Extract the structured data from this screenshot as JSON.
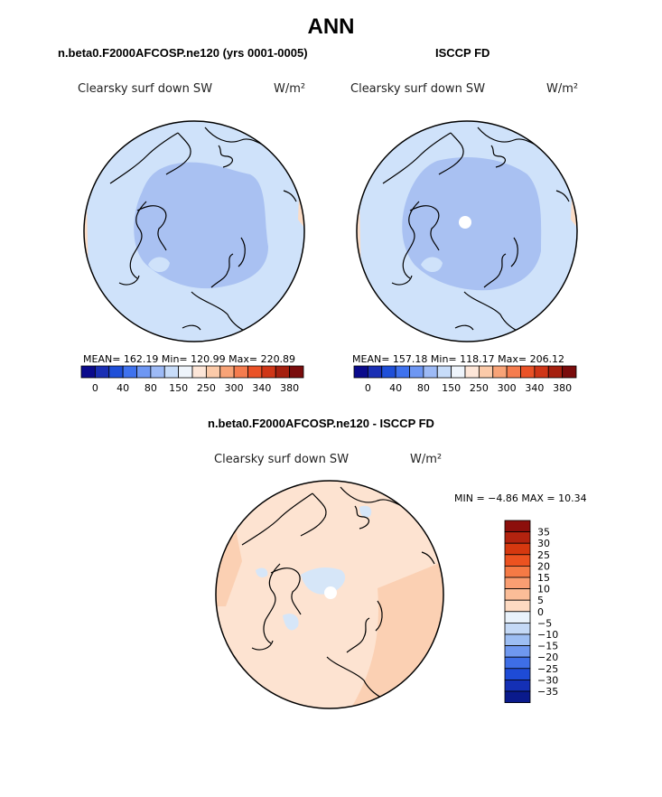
{
  "title": "ANN",
  "panels": [
    {
      "subtitle": "n.beta0.F2000AFCOSP.ne120 (yrs 0001-0005)",
      "variable": "Clearsky surf down SW",
      "units": "W/m²",
      "stats": "MEAN= 162.19   Min= 120.99   Max= 220.89"
    },
    {
      "subtitle": "ISCCP FD",
      "variable": "Clearsky surf down SW",
      "units": "W/m²",
      "stats": "MEAN= 157.18   Min= 118.17   Max= 206.12"
    }
  ],
  "shared_colorbar": {
    "colors": [
      "#0a0a8c",
      "#1a2fb4",
      "#1f4fd8",
      "#3f72ee",
      "#6e97f3",
      "#9dbaf6",
      "#c7dcf9",
      "#eef4fb",
      "#fde6d8",
      "#fbcaa9",
      "#f8a377",
      "#f57c4e",
      "#ea5227",
      "#cf3617",
      "#a5200f",
      "#7a0c0c"
    ],
    "ticks": [
      "0",
      "40",
      "80",
      "150",
      "250",
      "300",
      "340",
      "380"
    ]
  },
  "diff_panel": {
    "subtitle": "n.beta0.F2000AFCOSP.ne120 - ISCCP FD",
    "variable": "Clearsky surf down SW",
    "units": "W/m²",
    "stats": "MIN =   −4.86 MAX =   10.34"
  },
  "diff_colorbar": {
    "colors": [
      "#8c0f0c",
      "#b3230f",
      "#d6380f",
      "#ec5220",
      "#f57a45",
      "#fa9e72",
      "#fbbd98",
      "#fddac2",
      "#e9f2fb",
      "#c4d9f6",
      "#9dbef3",
      "#6f98ef",
      "#3e6ee6",
      "#1e4bd6",
      "#1430b5",
      "#0a1a8c"
    ],
    "labels": [
      "35",
      "30",
      "25",
      "20",
      "15",
      "10",
      "5",
      "0",
      "−5",
      "−10",
      "−15",
      "−20",
      "−25",
      "−30",
      "−35"
    ]
  },
  "chart_data": {
    "type": "heatmap",
    "projection": "north polar stereographic",
    "title": "ANN",
    "fields": [
      {
        "name": "n.beta0.F2000AFCOSP.ne120 (yrs 0001-0005)",
        "variable": "Clearsky surf down SW",
        "units": "W/m2",
        "mean": 162.19,
        "min": 120.99,
        "max": 220.89
      },
      {
        "name": "ISCCP FD",
        "variable": "Clearsky surf down SW",
        "units": "W/m2",
        "mean": 157.18,
        "min": 118.17,
        "max": 206.12
      },
      {
        "name": "n.beta0.F2000AFCOSP.ne120 - ISCCP FD",
        "variable": "Clearsky surf down SW",
        "units": "W/m2",
        "min": -4.86,
        "max": 10.34
      }
    ],
    "colorbar_levels": [
      0,
      40,
      80,
      150,
      250,
      300,
      340,
      380
    ],
    "diff_levels": [
      -35,
      -30,
      -25,
      -20,
      -15,
      -10,
      -5,
      0,
      5,
      10,
      15,
      20,
      25,
      30,
      35
    ]
  }
}
